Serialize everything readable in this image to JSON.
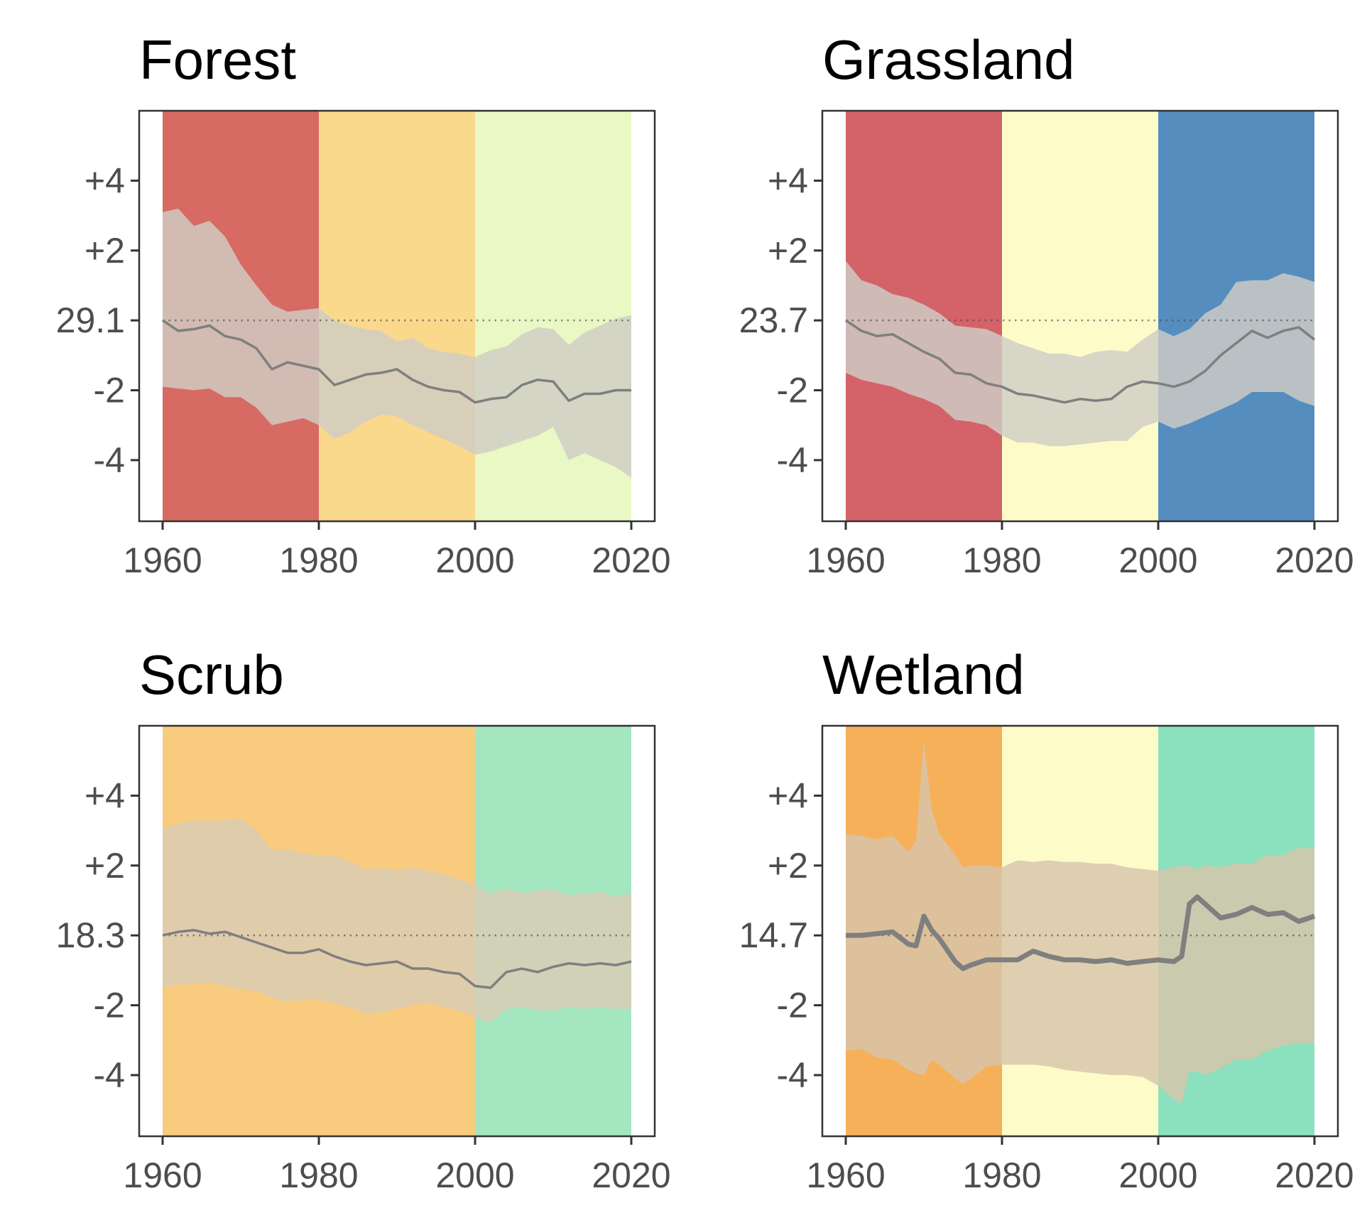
{
  "chart_data": [
    {
      "type": "area",
      "title": "Forest",
      "xlim": [
        1957,
        2023
      ],
      "ylim": [
        -5.75,
        6
      ],
      "x_ticks": [
        1960,
        1980,
        2000,
        2020
      ],
      "y_ticks": [
        {
          "value": 4,
          "label": "+4"
        },
        {
          "value": 2,
          "label": "+2"
        },
        {
          "value": 0,
          "label": "29.1"
        },
        {
          "value": -2,
          "label": "-2"
        },
        {
          "value": -4,
          "label": "-4"
        }
      ],
      "reference_line": 0,
      "periods": [
        {
          "from": 1960,
          "to": 1980,
          "color": "#d76a62"
        },
        {
          "from": 1980,
          "to": 2000,
          "color": "#fbd98c"
        },
        {
          "from": 2000,
          "to": 2020,
          "color": "#e9f8c4"
        }
      ],
      "band_color": "#cfcdc6",
      "line_color": "#7f7f7f",
      "x": [
        1960,
        1962,
        1964,
        1966,
        1968,
        1970,
        1972,
        1974,
        1976,
        1978,
        1980,
        1982,
        1984,
        1986,
        1988,
        1990,
        1992,
        1994,
        1996,
        1998,
        2000,
        2002,
        2004,
        2006,
        2008,
        2010,
        2012,
        2014,
        2016,
        2018,
        2020
      ],
      "y": [
        0.0,
        -0.3,
        -0.25,
        -0.15,
        -0.45,
        -0.55,
        -0.8,
        -1.4,
        -1.2,
        -1.3,
        -1.4,
        -1.85,
        -1.7,
        -1.55,
        -1.5,
        -1.4,
        -1.7,
        -1.9,
        -2.0,
        -2.05,
        -2.35,
        -2.25,
        -2.2,
        -1.85,
        -1.7,
        -1.75,
        -2.3,
        -2.1,
        -2.1,
        -2.0,
        -2.0
      ],
      "upper": [
        3.1,
        3.2,
        2.7,
        2.85,
        2.4,
        1.6,
        1.0,
        0.45,
        0.25,
        0.3,
        0.35,
        0.0,
        -0.15,
        -0.25,
        -0.3,
        -0.6,
        -0.5,
        -0.8,
        -0.9,
        -0.95,
        -1.05,
        -0.85,
        -0.75,
        -0.4,
        -0.2,
        -0.25,
        -0.7,
        -0.35,
        -0.15,
        0.05,
        0.15
      ],
      "lower": [
        -1.9,
        -1.95,
        -2.0,
        -1.95,
        -2.2,
        -2.2,
        -2.5,
        -3.0,
        -2.9,
        -2.8,
        -3.0,
        -3.4,
        -3.2,
        -2.9,
        -2.7,
        -2.75,
        -3.0,
        -3.2,
        -3.4,
        -3.6,
        -3.85,
        -3.75,
        -3.6,
        -3.45,
        -3.3,
        -3.05,
        -4.0,
        -3.8,
        -4.0,
        -4.2,
        -4.5
      ]
    },
    {
      "type": "area",
      "title": "Grassland",
      "xlim": [
        1957,
        2023
      ],
      "ylim": [
        -5.75,
        6
      ],
      "x_ticks": [
        1960,
        1980,
        2000,
        2020
      ],
      "y_ticks": [
        {
          "value": 4,
          "label": "+4"
        },
        {
          "value": 2,
          "label": "+2"
        },
        {
          "value": 0,
          "label": "23.7"
        },
        {
          "value": -2,
          "label": "-2"
        },
        {
          "value": -4,
          "label": "-4"
        }
      ],
      "reference_line": 0,
      "periods": [
        {
          "from": 1960,
          "to": 1980,
          "color": "#d36369"
        },
        {
          "from": 1980,
          "to": 2000,
          "color": "#fdfbc8"
        },
        {
          "from": 2000,
          "to": 2020,
          "color": "#558dbe"
        }
      ],
      "band_color": "#cfcdc6",
      "line_color": "#7f7f7f",
      "x": [
        1960,
        1962,
        1964,
        1966,
        1968,
        1970,
        1972,
        1974,
        1976,
        1978,
        1980,
        1982,
        1984,
        1986,
        1988,
        1990,
        1992,
        1994,
        1996,
        1998,
        2000,
        2002,
        2004,
        2006,
        2008,
        2010,
        2012,
        2014,
        2016,
        2018,
        2020
      ],
      "y": [
        0.0,
        -0.3,
        -0.45,
        -0.4,
        -0.65,
        -0.9,
        -1.1,
        -1.5,
        -1.55,
        -1.8,
        -1.9,
        -2.1,
        -2.15,
        -2.25,
        -2.35,
        -2.25,
        -2.3,
        -2.25,
        -1.9,
        -1.75,
        -1.8,
        -1.9,
        -1.75,
        -1.45,
        -1.0,
        -0.65,
        -0.3,
        -0.5,
        -0.3,
        -0.2,
        -0.55
      ],
      "upper": [
        1.7,
        1.15,
        1.0,
        0.75,
        0.65,
        0.45,
        0.2,
        -0.15,
        -0.2,
        -0.25,
        -0.45,
        -0.65,
        -0.8,
        -0.95,
        -0.95,
        -1.05,
        -0.9,
        -0.85,
        -0.9,
        -0.55,
        -0.25,
        -0.45,
        -0.25,
        0.2,
        0.45,
        1.1,
        1.15,
        1.15,
        1.35,
        1.25,
        1.1
      ],
      "lower": [
        -1.5,
        -1.7,
        -1.8,
        -1.9,
        -2.1,
        -2.25,
        -2.45,
        -2.85,
        -2.9,
        -3.0,
        -3.3,
        -3.5,
        -3.5,
        -3.6,
        -3.6,
        -3.55,
        -3.5,
        -3.45,
        -3.45,
        -3.05,
        -2.9,
        -3.1,
        -2.95,
        -2.75,
        -2.55,
        -2.35,
        -2.05,
        -2.05,
        -2.05,
        -2.3,
        -2.45
      ]
    },
    {
      "type": "area",
      "title": "Scrub",
      "xlim": [
        1957,
        2023
      ],
      "ylim": [
        -5.75,
        6
      ],
      "x_ticks": [
        1960,
        1980,
        2000,
        2020
      ],
      "y_ticks": [
        {
          "value": 4,
          "label": "+4"
        },
        {
          "value": 2,
          "label": "+2"
        },
        {
          "value": 0,
          "label": "18.3"
        },
        {
          "value": -2,
          "label": "-2"
        },
        {
          "value": -4,
          "label": "-4"
        }
      ],
      "reference_line": 0,
      "periods": [
        {
          "from": 1960,
          "to": 1980,
          "color": "#f8cb7e"
        },
        {
          "from": 1980,
          "to": 2000,
          "color": "#f8cb7e"
        },
        {
          "from": 2000,
          "to": 2020,
          "color": "#a4e6c0"
        }
      ],
      "band_color": "#d9ccb4",
      "line_color": "#7f7f7f",
      "x": [
        1960,
        1962,
        1964,
        1966,
        1968,
        1970,
        1972,
        1974,
        1976,
        1978,
        1980,
        1982,
        1984,
        1986,
        1988,
        1990,
        1992,
        1994,
        1996,
        1998,
        2000,
        2002,
        2004,
        2006,
        2008,
        2010,
        2012,
        2014,
        2016,
        2018,
        2020
      ],
      "y": [
        0.0,
        0.1,
        0.15,
        0.05,
        0.1,
        -0.05,
        -0.2,
        -0.35,
        -0.5,
        -0.5,
        -0.4,
        -0.6,
        -0.75,
        -0.85,
        -0.8,
        -0.75,
        -0.95,
        -0.95,
        -1.05,
        -1.1,
        -1.45,
        -1.5,
        -1.05,
        -0.95,
        -1.05,
        -0.9,
        -0.8,
        -0.85,
        -0.8,
        -0.85,
        -0.75
      ],
      "upper": [
        3.05,
        3.2,
        3.3,
        3.3,
        3.3,
        3.35,
        3.0,
        2.45,
        2.45,
        2.35,
        2.3,
        2.3,
        2.1,
        1.9,
        1.95,
        1.85,
        1.95,
        1.85,
        1.75,
        1.6,
        1.45,
        1.2,
        1.35,
        1.2,
        1.3,
        1.3,
        1.15,
        1.2,
        1.25,
        1.1,
        1.2
      ],
      "lower": [
        -1.5,
        -1.4,
        -1.4,
        -1.35,
        -1.45,
        -1.55,
        -1.6,
        -1.8,
        -1.9,
        -1.85,
        -1.85,
        -1.95,
        -2.05,
        -2.25,
        -2.2,
        -2.1,
        -2.0,
        -1.95,
        -2.05,
        -2.15,
        -2.35,
        -2.5,
        -2.1,
        -2.05,
        -2.15,
        -2.15,
        -2.05,
        -2.1,
        -2.05,
        -2.1,
        -2.1
      ]
    },
    {
      "type": "area",
      "title": "Wetland",
      "xlim": [
        1957,
        2023
      ],
      "ylim": [
        -5.75,
        6
      ],
      "x_ticks": [
        1960,
        1980,
        2000,
        2020
      ],
      "y_ticks": [
        {
          "value": 4,
          "label": "+4"
        },
        {
          "value": 2,
          "label": "+2"
        },
        {
          "value": 0,
          "label": "14.7"
        },
        {
          "value": -2,
          "label": "-2"
        },
        {
          "value": -4,
          "label": "-4"
        }
      ],
      "reference_line": 0,
      "periods": [
        {
          "from": 1960,
          "to": 1980,
          "color": "#f5b059"
        },
        {
          "from": 1980,
          "to": 2000,
          "color": "#fdfbc8"
        },
        {
          "from": 2000,
          "to": 2020,
          "color": "#8be0bd"
        }
      ],
      "band_color": "#d8c5ac",
      "line_color": "#7f7f7f",
      "x": [
        1960,
        1962,
        1964,
        1966,
        1968,
        1969,
        1970,
        1971,
        1972,
        1974,
        1975,
        1976,
        1978,
        1980,
        1982,
        1984,
        1986,
        1988,
        1990,
        1992,
        1994,
        1996,
        1998,
        2000,
        2002,
        2003,
        2004,
        2005,
        2006,
        2008,
        2010,
        2012,
        2014,
        2016,
        2018,
        2020
      ],
      "y": [
        0.0,
        0.0,
        0.05,
        0.1,
        -0.25,
        -0.3,
        0.55,
        0.15,
        -0.1,
        -0.75,
        -0.95,
        -0.85,
        -0.7,
        -0.7,
        -0.7,
        -0.45,
        -0.6,
        -0.7,
        -0.7,
        -0.75,
        -0.7,
        -0.8,
        -0.75,
        -0.7,
        -0.75,
        -0.6,
        0.9,
        1.1,
        0.9,
        0.5,
        0.6,
        0.8,
        0.6,
        0.65,
        0.4,
        0.55
      ],
      "upper": [
        2.9,
        2.85,
        2.75,
        2.85,
        2.4,
        2.7,
        5.6,
        3.6,
        2.9,
        2.3,
        1.95,
        2.0,
        2.0,
        1.95,
        2.15,
        2.1,
        2.15,
        2.1,
        2.1,
        2.05,
        2.05,
        1.95,
        1.9,
        1.85,
        1.95,
        2.0,
        2.0,
        1.9,
        2.0,
        1.95,
        2.05,
        2.05,
        2.3,
        2.3,
        2.5,
        2.5
      ],
      "lower": [
        -3.3,
        -3.25,
        -3.5,
        -3.55,
        -3.85,
        -3.95,
        -4.0,
        -3.55,
        -3.7,
        -4.1,
        -4.25,
        -4.1,
        -3.75,
        -3.7,
        -3.7,
        -3.7,
        -3.75,
        -3.85,
        -3.9,
        -3.95,
        -4.0,
        -4.0,
        -4.05,
        -4.3,
        -4.7,
        -4.8,
        -3.9,
        -3.9,
        -4.0,
        -3.8,
        -3.55,
        -3.55,
        -3.3,
        -3.15,
        -3.1,
        -3.1
      ]
    }
  ]
}
